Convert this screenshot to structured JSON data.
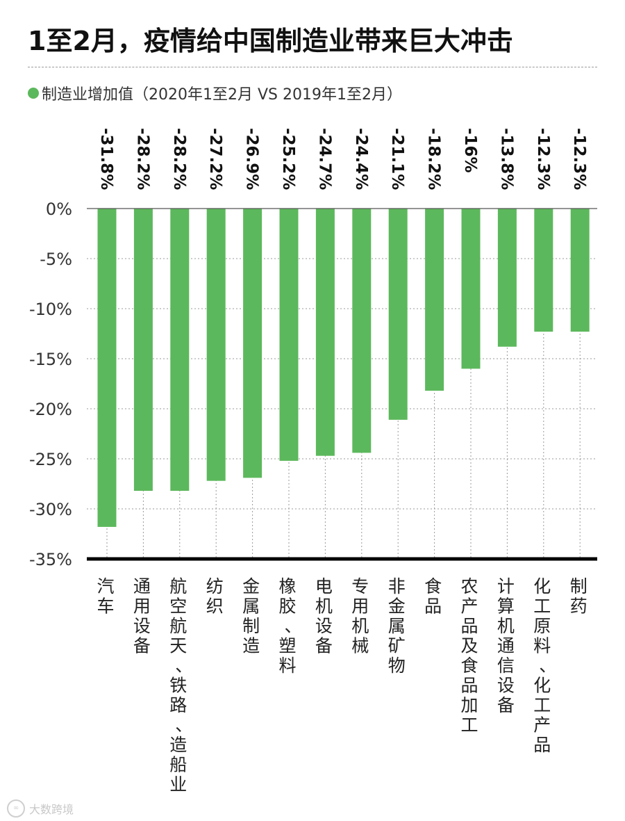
{
  "title": "1至2月，疫情给中国制造业带来巨大冲击",
  "legend": "制造业增加值（2020年1至2月 VS 2019年1至2月）",
  "watermark": "大数跨境",
  "colors": {
    "bar": "#5cb85c",
    "grid": "#9a9a9a",
    "axis": "#000000"
  },
  "chart_data": {
    "type": "bar",
    "title": "1至2月，疫情给中国制造业带来巨大冲击",
    "xlabel": "",
    "ylabel": "",
    "ylim": [
      -35,
      0
    ],
    "yticks": [
      "0%",
      "-5%",
      "-10%",
      "-15%",
      "-20%",
      "-25%",
      "-30%",
      "-35%"
    ],
    "grid": true,
    "legend": "top-left",
    "categories": [
      "汽车",
      "通用设备",
      "航空航天、铁路、造船业",
      "纺织",
      "金属制造",
      "橡胶、塑料",
      "电机设备",
      "专用机械",
      "非金属矿物",
      "食品",
      "农产品及食品加工",
      "计算机通信设备",
      "化工原料、化工产品",
      "制药"
    ],
    "series": [
      {
        "name": "制造业增加值（2020年1至2月 VS 2019年1至2月）",
        "values": [
          -31.8,
          -28.2,
          -28.2,
          -27.2,
          -26.9,
          -25.2,
          -24.7,
          -24.4,
          -21.1,
          -18.2,
          -16,
          -13.8,
          -12.3,
          -12.3
        ],
        "labels": [
          "-31.8%",
          "-28.2%",
          "-28.2%",
          "-27.2%",
          "-26.9%",
          "-25.2%",
          "-24.7%",
          "-24.4%",
          "-21.1%",
          "-18.2%",
          "-16%",
          "-13.8%",
          "-12.3%",
          "-12.3%"
        ]
      }
    ]
  }
}
